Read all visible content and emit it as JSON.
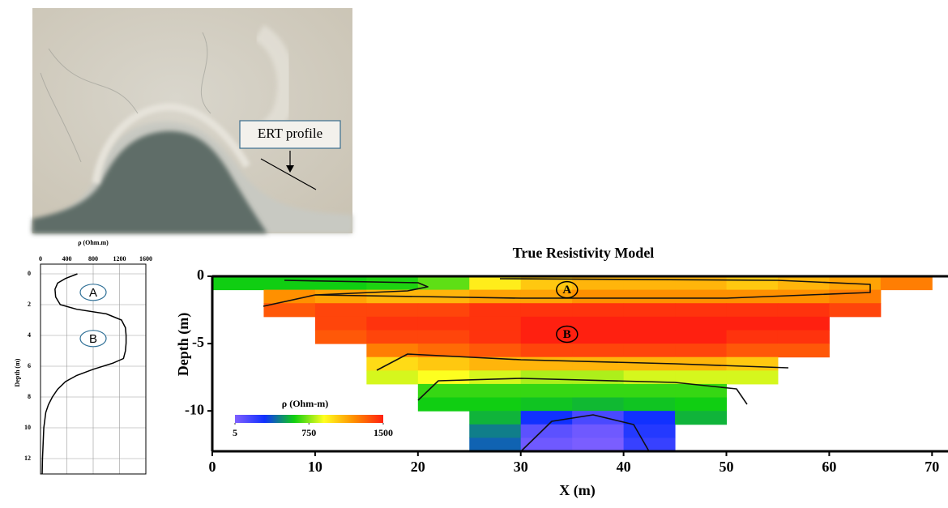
{
  "image": {
    "annotation": "ERT profile"
  },
  "chart_data": [
    {
      "type": "line",
      "xlabel": "ρ (Ohm.m)",
      "ylabel": "Depth (m)",
      "depth": [
        0,
        0.3,
        0.6,
        1,
        1.5,
        2,
        2.3,
        2.6,
        3,
        3.5,
        4,
        4.5,
        5,
        5.5,
        5.8,
        6.2,
        6.6,
        7,
        7.5,
        8,
        8.5,
        9,
        10,
        11,
        12,
        13
      ],
      "values": [
        560,
        380,
        260,
        220,
        230,
        300,
        550,
        1000,
        1230,
        1290,
        1300,
        1300,
        1290,
        1260,
        1100,
        800,
        550,
        380,
        260,
        180,
        120,
        80,
        50,
        40,
        30,
        25
      ],
      "color": "#000000",
      "xlim": [
        0,
        1600
      ],
      "xticks": [
        0,
        400,
        800,
        1200,
        1600
      ],
      "ylim": [
        0,
        13
      ],
      "yticks": [
        0,
        2,
        4,
        6,
        8,
        10,
        12
      ],
      "grid": true,
      "annotations": [
        {
          "text": "A",
          "x": 800,
          "y": 1.2
        },
        {
          "text": "B",
          "x": 800,
          "y": 4.2
        }
      ]
    },
    {
      "type": "heatmap",
      "title": "True Resistivity Model",
      "xlabel": "X (m)",
      "ylabel": "Depth (m)",
      "x": [
        2.5,
        7.5,
        12.5,
        17.5,
        22.5,
        27.5,
        32.5,
        37.5,
        42.5,
        47.5,
        52.5,
        57.5,
        62.5,
        67.5
      ],
      "y": [
        -0.5,
        -1.5,
        -2.5,
        -3.5,
        -4.5,
        -5.5,
        -6.5,
        -7.5,
        -8.5,
        -9.5,
        -10.5,
        -11.5,
        -12.5
      ],
      "z": [
        [
          600,
          600,
          600,
          620,
          700,
          950,
          1050,
          1100,
          1100,
          1100,
          1050,
          1100,
          1150,
          1250
        ],
        [
          null,
          1200,
          1150,
          1100,
          1100,
          1150,
          1150,
          1200,
          1200,
          1200,
          1200,
          1200,
          1250,
          null
        ],
        [
          null,
          1350,
          1400,
          1400,
          1400,
          1450,
          1450,
          1450,
          1450,
          1450,
          1450,
          1450,
          1400,
          null
        ],
        [
          null,
          null,
          1400,
          1450,
          1450,
          1450,
          1500,
          1500,
          1500,
          1500,
          1500,
          1500,
          null,
          null
        ],
        [
          null,
          null,
          1350,
          1400,
          1400,
          1450,
          1500,
          1500,
          1500,
          1500,
          1450,
          1450,
          null,
          null
        ],
        [
          null,
          null,
          null,
          1250,
          1300,
          1350,
          1400,
          1400,
          1400,
          1400,
          1350,
          1350,
          null,
          null
        ],
        [
          null,
          null,
          null,
          1000,
          1050,
          1100,
          1100,
          1100,
          1100,
          1100,
          1050,
          null,
          null,
          null
        ],
        [
          null,
          null,
          null,
          850,
          900,
          850,
          800,
          800,
          850,
          850,
          850,
          null,
          null,
          null
        ],
        [
          null,
          null,
          null,
          null,
          650,
          650,
          650,
          650,
          650,
          650,
          null,
          null,
          null,
          null
        ],
        [
          null,
          null,
          null,
          null,
          600,
          600,
          580,
          560,
          580,
          600,
          null,
          null,
          null,
          null
        ],
        [
          null,
          null,
          null,
          null,
          null,
          550,
          300,
          150,
          300,
          550,
          null,
          null,
          null,
          null
        ],
        [
          null,
          null,
          null,
          null,
          null,
          450,
          100,
          50,
          250,
          null,
          null,
          null,
          null,
          null
        ],
        [
          null,
          null,
          null,
          null,
          null,
          400,
          50,
          20,
          200,
          null,
          null,
          null,
          null,
          null
        ]
      ],
      "xlim": [
        0,
        71
      ],
      "xticks": [
        0,
        10,
        20,
        30,
        40,
        50,
        60,
        70
      ],
      "ylim": [
        -13,
        0
      ],
      "yticks": [
        0,
        -5,
        -10
      ],
      "colorscale": [
        "#8060ff",
        "#1030ff",
        "#10d010",
        "#ffff20",
        "#ff9000",
        "#ff2010"
      ],
      "colorbar": {
        "label": "ρ (Ohm-m)",
        "zlim": [
          5,
          1500
        ],
        "ticks": [
          5,
          750,
          1500
        ]
      },
      "annotations": [
        {
          "text": "A",
          "x": 34.5,
          "y": -1
        },
        {
          "text": "B",
          "x": 34.5,
          "y": -4.3
        }
      ]
    }
  ]
}
